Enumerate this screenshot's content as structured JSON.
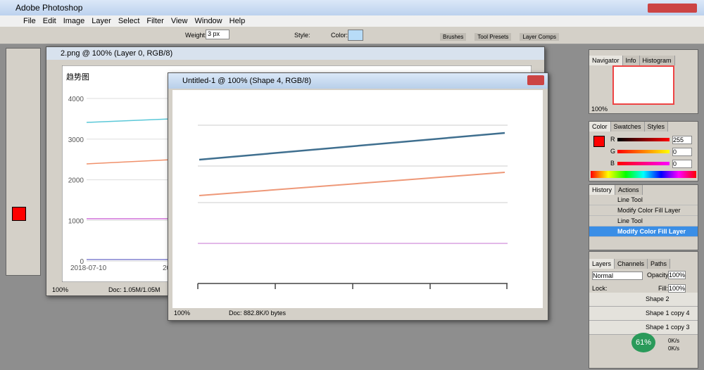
{
  "app": {
    "title": "Adobe Photoshop",
    "menu": [
      "File",
      "Edit",
      "Image",
      "Layer",
      "Select",
      "Filter",
      "View",
      "Window",
      "Help"
    ]
  },
  "options": {
    "weight_label": "Weight:",
    "weight": "3 px",
    "style_label": "Style:",
    "color_label": "Color:",
    "wells": [
      "Brushes",
      "Tool Presets",
      "Layer Comps"
    ]
  },
  "doc1": {
    "title": "2.png @ 100% (Layer 0, RGB/8)",
    "chart_title": "趋势图",
    "yticks": [
      "4000",
      "3000",
      "2000",
      "1000",
      "0"
    ],
    "xlabels": [
      "2018-07-10",
      "20"
    ],
    "zoom": "100%",
    "status": "Doc: 1.05M/1.05M"
  },
  "doc2": {
    "title": "Untitled-1 @ 100% (Shape 4, RGB/8)",
    "zoom": "100%",
    "status": "Doc: 882.8K/0 bytes"
  },
  "navigator": {
    "tabs": [
      "Navigator",
      "Info",
      "Histogram"
    ],
    "zoom": "100%"
  },
  "color": {
    "tabs": [
      "Color",
      "Swatches",
      "Styles"
    ],
    "channels": [
      {
        "name": "R",
        "value": "255"
      },
      {
        "name": "G",
        "value": "0"
      },
      {
        "name": "B",
        "value": "0"
      }
    ]
  },
  "history": {
    "tabs": [
      "History",
      "Actions"
    ],
    "items": [
      "Line Tool",
      "Modify Color Fill Layer",
      "Line Tool",
      "Modify Color Fill Layer"
    ]
  },
  "layers": {
    "tabs": [
      "Layers",
      "Channels",
      "Paths"
    ],
    "mode": "Normal",
    "opacity_label": "Opacity:",
    "opacity": "100%",
    "lock_label": "Lock:",
    "fill_label": "Fill:",
    "fill": "100%",
    "items": [
      "Shape 2",
      "Shape 1 copy 4",
      "Shape 1 copy 3"
    ]
  },
  "overlay": {
    "percent": "61%",
    "speeds": [
      "0K/s",
      "0K/s"
    ]
  }
}
